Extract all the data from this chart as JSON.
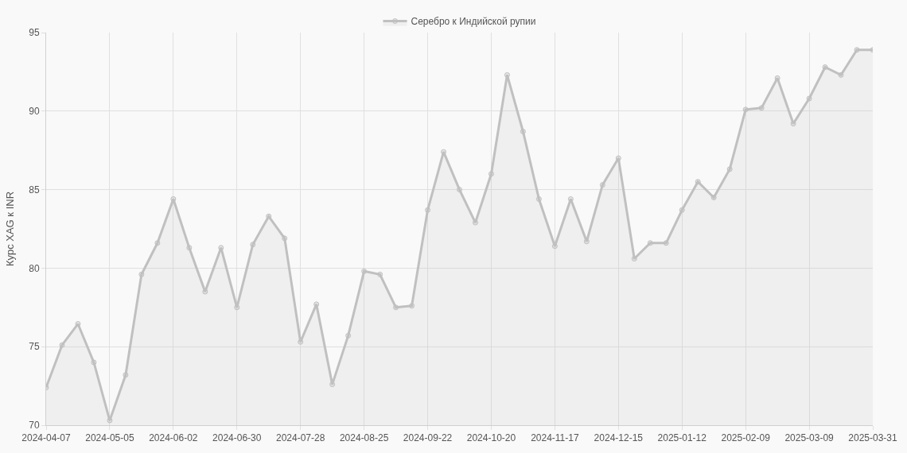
{
  "chart_data": {
    "type": "area",
    "categories": [
      "2024-04-07",
      null,
      null,
      null,
      "2024-05-05",
      null,
      null,
      null,
      "2024-06-02",
      null,
      null,
      null,
      "2024-06-30",
      null,
      null,
      null,
      "2024-07-28",
      null,
      null,
      null,
      "2024-08-25",
      null,
      null,
      null,
      "2024-09-22",
      null,
      null,
      null,
      "2024-10-20",
      null,
      null,
      null,
      "2024-11-17",
      null,
      null,
      null,
      "2024-12-15",
      null,
      null,
      null,
      "2025-01-12",
      null,
      null,
      null,
      "2025-02-09",
      null,
      null,
      null,
      "2025-03-09",
      null,
      null,
      null,
      "2025-03-31"
    ],
    "series": [
      {
        "name": "Серебро к Индийской рупии",
        "color": "#c0c0c0",
        "values": [
          72.4,
          75.1,
          76.45,
          74.0,
          70.3,
          73.2,
          79.6,
          81.6,
          84.4,
          81.3,
          78.5,
          81.3,
          77.5,
          81.5,
          83.3,
          81.9,
          75.3,
          77.7,
          72.6,
          75.7,
          79.8,
          79.6,
          77.5,
          77.6,
          83.7,
          87.4,
          85.0,
          82.9,
          86.0,
          92.3,
          88.7,
          84.4,
          81.4,
          84.4,
          81.7,
          85.3,
          87.0,
          80.6,
          81.6,
          81.6,
          83.7,
          85.5,
          84.5,
          86.3,
          90.1,
          90.2,
          92.1,
          89.2,
          90.8,
          92.8,
          92.3,
          93.9,
          93.9
        ]
      }
    ],
    "ylabel": "Курс XAG к INR",
    "ylim": [
      70,
      95
    ],
    "yticks": [
      70,
      75,
      80,
      85,
      90,
      95
    ],
    "grid": true,
    "legend": "top",
    "marker": "circle",
    "line_style": "solid"
  }
}
